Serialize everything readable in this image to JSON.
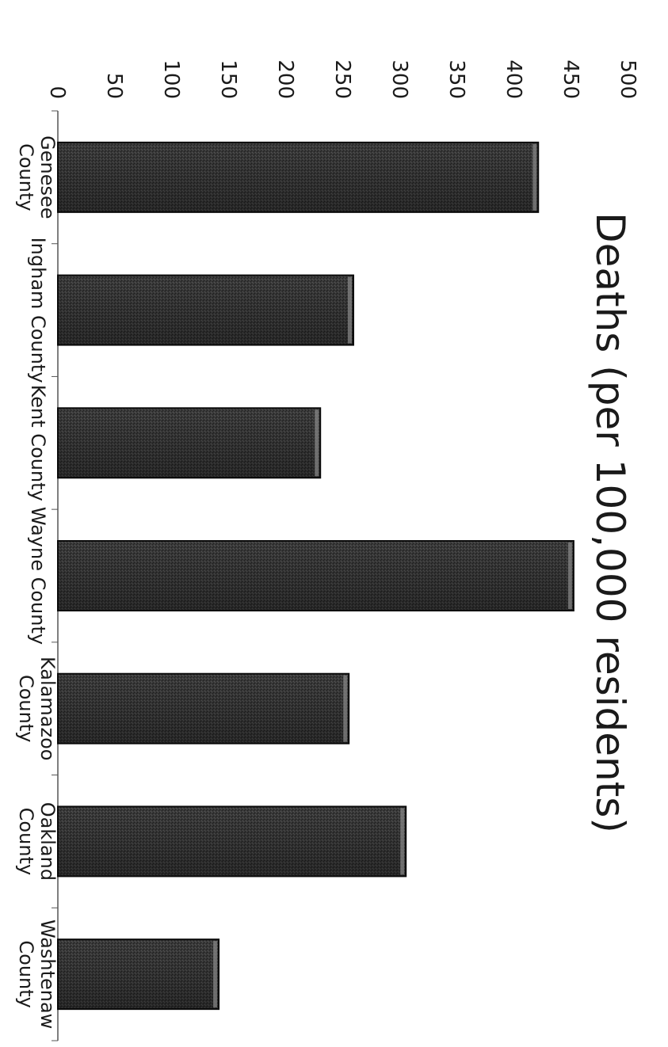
{
  "chart_data": {
    "type": "bar",
    "orientation": "vertical bars, figure rotated 90 degrees clockwise",
    "title": "Deaths (per 100,000 residents)",
    "xlabel": "",
    "ylabel": "",
    "categories": [
      [
        "Genesee",
        "County"
      ],
      [
        "Ingham County"
      ],
      [
        "Kent County"
      ],
      [
        "Wayne County"
      ],
      [
        "Kalamazoo",
        "County"
      ],
      [
        "Oakland",
        "County"
      ],
      [
        "Washtenaw",
        "County"
      ]
    ],
    "values": [
      421,
      259,
      230,
      452,
      255,
      305,
      141
    ],
    "ylim": [
      0,
      500
    ],
    "yticks": [
      "0",
      "50",
      "100",
      "150",
      "200",
      "250",
      "300",
      "350",
      "400",
      "450",
      "500"
    ],
    "grid": false,
    "legend": "none",
    "bar_color": "#2e2e2e"
  }
}
